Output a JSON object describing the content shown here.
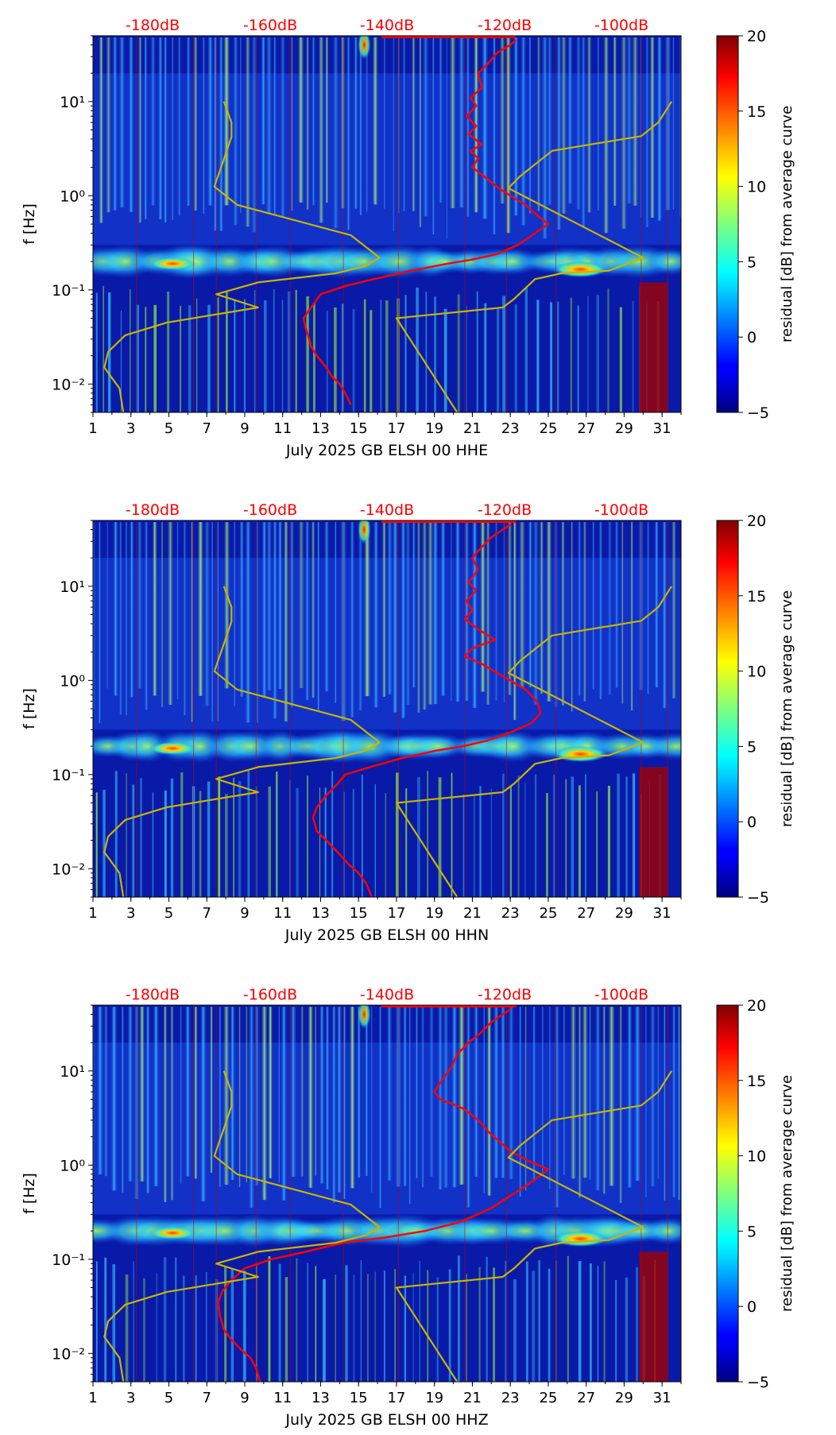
{
  "chart_data": [
    {
      "type": "heatmap",
      "title": "",
      "xlabel": "July 2025 GB ELSH 00 HHE",
      "ylabel": "f [Hz]",
      "x_range": [
        1,
        32
      ],
      "x_ticks": [
        "1",
        "3",
        "5",
        "7",
        "9",
        "11",
        "13",
        "15",
        "17",
        "19",
        "21",
        "23",
        "25",
        "27",
        "29",
        "31"
      ],
      "y_range": [
        0.005,
        50
      ],
      "y_scale": "log",
      "y_ticks": [
        {
          "label": "10⁻²",
          "value": 0.01
        },
        {
          "label": "10⁻¹",
          "value": 0.1
        },
        {
          "label": "10⁰",
          "value": 1
        },
        {
          "label": "10¹",
          "value": 10
        }
      ],
      "top_axis_labels": [
        "-180dB",
        "-160dB",
        "-140dB",
        "-120dB",
        "-100dB"
      ],
      "top_axis_color": "#ff0000",
      "colorbar": {
        "label": "residual [dB] from average curve",
        "range": [
          -5,
          20
        ],
        "ticks": [
          "−5",
          "0",
          "5",
          "10",
          "15",
          "20"
        ],
        "colormap": "jet"
      },
      "series": [
        {
          "name": "red-curve",
          "color": "#ff0000",
          "x": [
            23.3,
            23.0,
            22.3,
            21.8,
            21.3,
            21.5,
            20.9,
            21.2,
            20.7,
            21.2,
            20.8,
            21.5,
            20.9,
            21.3,
            21.0,
            21.8,
            22.4,
            23.0,
            23.8,
            24.5,
            25.0,
            24.3,
            23.4,
            22.3,
            21.0,
            19.7,
            17.8,
            15.8,
            14.3,
            13.0,
            12.5,
            12.1,
            12.2,
            12.4,
            12.5,
            12.8,
            13.3,
            13.6,
            14.0,
            14.3,
            14.6
          ],
          "y": [
            45,
            40,
            33,
            25,
            20,
            14,
            11,
            9,
            7,
            5.5,
            4.5,
            3.5,
            3,
            2.5,
            2,
            1.5,
            1.2,
            1.0,
            0.8,
            0.6,
            0.5,
            0.4,
            0.3,
            0.24,
            0.21,
            0.19,
            0.16,
            0.13,
            0.11,
            0.09,
            0.065,
            0.05,
            0.04,
            0.03,
            0.025,
            0.02,
            0.015,
            0.012,
            0.01,
            0.008,
            0.006
          ]
        },
        {
          "name": "yellow-high-noise-model",
          "color": "#c8b400",
          "x": [
            31.5,
            30.8,
            29.9,
            25.2,
            23.5,
            22.9,
            30.0,
            28.2,
            25.7,
            24.3,
            23.2,
            22.6,
            17.0,
            20.2
          ],
          "y": [
            10,
            6,
            4.3,
            3.0,
            1.6,
            1.2,
            0.22,
            0.16,
            0.15,
            0.13,
            0.08,
            0.065,
            0.05,
            0.005
          ]
        },
        {
          "name": "yellow-low-noise-model",
          "color": "#c8b400",
          "x": [
            7.9,
            8.3,
            8.3,
            7.4,
            8.6,
            14.6,
            16.1,
            15.4,
            13.8,
            9.7,
            7.5,
            9.7,
            4.9,
            2.7,
            1.8,
            1.6,
            2.4,
            2.6
          ],
          "y": [
            10,
            6,
            4.2,
            1.25,
            0.8,
            0.38,
            0.22,
            0.18,
            0.15,
            0.12,
            0.09,
            0.065,
            0.045,
            0.033,
            0.022,
            0.015,
            0.009,
            0.005
          ]
        }
      ]
    },
    {
      "type": "heatmap",
      "title": "",
      "xlabel": "July 2025 GB ELSH 00 HHN",
      "ylabel": "f [Hz]",
      "x_range": [
        1,
        32
      ],
      "x_ticks": [
        "1",
        "3",
        "5",
        "7",
        "9",
        "11",
        "13",
        "15",
        "17",
        "19",
        "21",
        "23",
        "25",
        "27",
        "29",
        "31"
      ],
      "y_range": [
        0.005,
        50
      ],
      "y_scale": "log",
      "y_ticks": [
        {
          "label": "10⁻²",
          "value": 0.01
        },
        {
          "label": "10⁻¹",
          "value": 0.1
        },
        {
          "label": "10⁰",
          "value": 1
        },
        {
          "label": "10¹",
          "value": 10
        }
      ],
      "top_axis_labels": [
        "-180dB",
        "-160dB",
        "-140dB",
        "-120dB",
        "-100dB"
      ],
      "top_axis_color": "#ff0000",
      "colorbar": {
        "label": "residual [dB] from average curve",
        "range": [
          -5,
          20
        ],
        "ticks": [
          "−5",
          "0",
          "5",
          "10",
          "15",
          "20"
        ],
        "colormap": "jet"
      },
      "series": [
        {
          "name": "red-curve",
          "color": "#ff0000",
          "x": [
            23.0,
            22.6,
            22.0,
            21.4,
            21.0,
            21.3,
            20.8,
            21.2,
            20.7,
            21.0,
            20.6,
            21.3,
            22.2,
            21.0,
            20.6,
            21.5,
            22.3,
            23.0,
            23.8,
            24.4,
            24.6,
            24.1,
            23.0,
            21.8,
            20.5,
            19.1,
            17.3,
            15.6,
            14.3,
            13.9,
            13.3,
            12.8,
            12.6,
            12.8,
            13.3,
            13.9,
            14.5,
            15.0,
            15.4,
            15.7
          ],
          "y": [
            45,
            40,
            33,
            25,
            20,
            15,
            11,
            9,
            7,
            5.5,
            4.5,
            3.5,
            2.7,
            2.2,
            1.8,
            1.5,
            1.2,
            1.0,
            0.8,
            0.6,
            0.45,
            0.35,
            0.28,
            0.23,
            0.2,
            0.18,
            0.15,
            0.12,
            0.1,
            0.08,
            0.06,
            0.045,
            0.035,
            0.025,
            0.02,
            0.015,
            0.011,
            0.009,
            0.007,
            0.005
          ]
        },
        {
          "name": "yellow-high-noise-model",
          "color": "#c8b400",
          "x": [
            31.5,
            30.8,
            29.9,
            25.2,
            23.5,
            22.9,
            30.0,
            28.2,
            25.7,
            24.3,
            23.2,
            22.6,
            17.0,
            20.2
          ],
          "y": [
            10,
            6,
            4.3,
            3.0,
            1.6,
            1.2,
            0.22,
            0.16,
            0.15,
            0.13,
            0.08,
            0.065,
            0.05,
            0.005
          ]
        },
        {
          "name": "yellow-low-noise-model",
          "color": "#c8b400",
          "x": [
            7.9,
            8.3,
            8.3,
            7.4,
            8.6,
            14.6,
            16.1,
            15.4,
            13.8,
            9.7,
            7.5,
            9.7,
            4.9,
            2.7,
            1.8,
            1.6,
            2.4,
            2.6
          ],
          "y": [
            10,
            6,
            4.2,
            1.25,
            0.8,
            0.38,
            0.22,
            0.18,
            0.15,
            0.12,
            0.09,
            0.065,
            0.045,
            0.033,
            0.022,
            0.015,
            0.009,
            0.005
          ]
        }
      ]
    },
    {
      "type": "heatmap",
      "title": "",
      "xlabel": "July 2025 GB ELSH 00 HHZ",
      "ylabel": "f [Hz]",
      "x_range": [
        1,
        32
      ],
      "x_ticks": [
        "1",
        "3",
        "5",
        "7",
        "9",
        "11",
        "13",
        "15",
        "17",
        "19",
        "21",
        "23",
        "25",
        "27",
        "29",
        "31"
      ],
      "y_range": [
        0.005,
        50
      ],
      "y_scale": "log",
      "y_ticks": [
        {
          "label": "10⁻²",
          "value": 0.01
        },
        {
          "label": "10⁻¹",
          "value": 0.1
        },
        {
          "label": "10⁰",
          "value": 1
        },
        {
          "label": "10¹",
          "value": 10
        }
      ],
      "top_axis_labels": [
        "-180dB",
        "-160dB",
        "-140dB",
        "-120dB",
        "-100dB"
      ],
      "top_axis_color": "#ff0000",
      "colorbar": {
        "label": "residual [dB] from average curve",
        "range": [
          -5,
          20
        ],
        "ticks": [
          "−5",
          "0",
          "5",
          "10",
          "15",
          "20"
        ],
        "colormap": "jet"
      },
      "series": [
        {
          "name": "red-curve",
          "color": "#ff0000",
          "x": [
            23.0,
            22.6,
            22.0,
            21.4,
            20.8,
            20.2,
            19.9,
            19.4,
            19.0,
            19.3,
            19.9,
            20.5,
            20.9,
            21.3,
            21.6,
            21.9,
            22.4,
            23.0,
            24.0,
            25.0,
            24.3,
            23.2,
            22.0,
            20.4,
            18.5,
            16.4,
            14.2,
            12.2,
            10.4,
            9.0,
            8.3,
            7.8,
            7.6,
            7.7,
            7.9,
            8.3,
            8.8,
            9.3,
            9.6,
            9.8
          ],
          "y": [
            45,
            40,
            33,
            25,
            20,
            15,
            11,
            8,
            6,
            5,
            4.5,
            4,
            3.5,
            3,
            2.6,
            2.2,
            1.8,
            1.4,
            1.1,
            0.9,
            0.7,
            0.5,
            0.35,
            0.25,
            0.2,
            0.17,
            0.15,
            0.12,
            0.1,
            0.08,
            0.06,
            0.045,
            0.035,
            0.025,
            0.018,
            0.014,
            0.011,
            0.009,
            0.007,
            0.005
          ]
        },
        {
          "name": "yellow-high-noise-model",
          "color": "#c8b400",
          "x": [
            31.5,
            30.8,
            29.9,
            25.2,
            23.5,
            22.9,
            30.0,
            28.2,
            25.7,
            24.3,
            23.2,
            22.6,
            17.0,
            20.2
          ],
          "y": [
            10,
            6,
            4.3,
            3.0,
            1.6,
            1.2,
            0.22,
            0.16,
            0.15,
            0.13,
            0.08,
            0.065,
            0.05,
            0.005
          ]
        },
        {
          "name": "yellow-low-noise-model",
          "color": "#c8b400",
          "x": [
            7.9,
            8.3,
            8.3,
            7.4,
            8.6,
            14.6,
            16.1,
            15.4,
            13.8,
            9.7,
            7.5,
            9.7,
            4.9,
            2.7,
            1.8,
            1.6,
            2.4,
            2.6
          ],
          "y": [
            10,
            6,
            4.2,
            1.25,
            0.8,
            0.38,
            0.22,
            0.18,
            0.15,
            0.12,
            0.09,
            0.065,
            0.045,
            0.033,
            0.022,
            0.015,
            0.009,
            0.005
          ]
        }
      ]
    }
  ]
}
